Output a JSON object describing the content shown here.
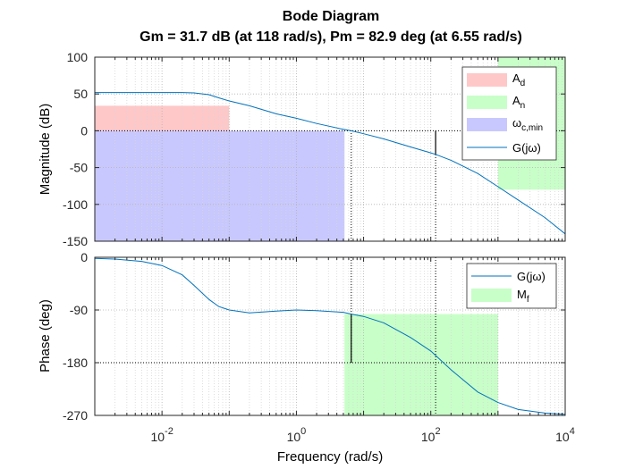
{
  "chart_data": {
    "type": "line",
    "title": "Bode Diagram",
    "subtitle": "Gm = 31.7 dB (at 118 rad/s),  Pm = 82.9 deg (at 6.55 rad/s)",
    "xlabel": "Frequency  (rad/s)",
    "xscale": "log",
    "xlim": [
      0.001,
      10000
    ],
    "grid": true,
    "x_ticks": [
      {
        "value": 0.01,
        "base": "10",
        "exp": "-2"
      },
      {
        "value": 1,
        "base": "10",
        "exp": "0"
      },
      {
        "value": 100,
        "base": "10",
        "exp": "2"
      },
      {
        "value": 10000,
        "base": "10",
        "exp": "4"
      }
    ],
    "magnitude": {
      "ylabel": "Magnitude (dB)",
      "ylim": [
        -150,
        100
      ],
      "yticks": [
        "100",
        "50",
        "0",
        "-50",
        "-100",
        "-150"
      ],
      "ytick_values": [
        100,
        50,
        0,
        -50,
        -100,
        -150
      ],
      "series": [
        {
          "name": "G(jω)",
          "color": "#0072BD",
          "x": [
            0.001,
            0.002,
            0.005,
            0.01,
            0.02,
            0.03,
            0.05,
            0.07,
            0.1,
            0.2,
            0.5,
            1,
            2,
            5,
            6.55,
            10,
            20,
            50,
            100,
            118,
            200,
            500,
            1000,
            2000,
            5000,
            10000
          ],
          "y": [
            52,
            52,
            52,
            52,
            52,
            51.5,
            49,
            44.8,
            40.5,
            34,
            23,
            17,
            10,
            2,
            0,
            -4,
            -11,
            -22,
            -30,
            -32,
            -40,
            -58,
            -76,
            -94,
            -118,
            -140
          ]
        }
      ],
      "regions": [
        {
          "name": "A_d",
          "label_main": "A",
          "label_sub": "d",
          "color": "#ffc8c8",
          "x": [
            0.001,
            0.1
          ],
          "y": [
            0,
            34
          ]
        },
        {
          "name": "A_n",
          "label_main": "A",
          "label_sub": "n",
          "color": "#c8ffc8",
          "x": [
            1000,
            10000
          ],
          "y": [
            -80,
            100
          ]
        },
        {
          "name": "ω_c,min",
          "label_main": "ω",
          "label_sub": "c,min",
          "color": "#c8c8ff",
          "x": [
            0.001,
            5.2
          ],
          "y": [
            -150,
            0
          ]
        }
      ],
      "annotations": [
        {
          "type": "dotted-hline",
          "y": 0
        },
        {
          "type": "dotted-vline",
          "x": 6.55,
          "y_from": -150,
          "y_to": 0
        },
        {
          "type": "dotted-vline",
          "x": 118,
          "y_from": -150,
          "y_to": -32
        },
        {
          "type": "gain-margin-bar",
          "x": 118,
          "y_from": -32,
          "y_to": 0
        }
      ],
      "legend": [
        "A_d",
        "A_n",
        "ω_c,min",
        "G(jω)"
      ],
      "legend_position": "top-right"
    },
    "phase": {
      "ylabel": "Phase (deg)",
      "ylim": [
        -270,
        0
      ],
      "yticks": [
        "0",
        "-90",
        "-180",
        "-270"
      ],
      "ytick_values": [
        0,
        -90,
        -180,
        -270
      ],
      "series": [
        {
          "name": "G(jω)",
          "color": "#0072BD",
          "x": [
            0.001,
            0.002,
            0.005,
            0.01,
            0.02,
            0.03,
            0.05,
            0.07,
            0.1,
            0.2,
            0.5,
            1,
            2,
            5,
            6.55,
            10,
            20,
            50,
            100,
            200,
            500,
            1000,
            2000,
            5000,
            10000
          ],
          "y": [
            -2,
            -3,
            -7,
            -14,
            -30,
            -48,
            -72,
            -84,
            -90,
            -95,
            -92,
            -90,
            -91,
            -94,
            -97,
            -101,
            -112,
            -137,
            -160,
            -192,
            -230,
            -248,
            -260,
            -266,
            -268
          ]
        }
      ],
      "regions": [
        {
          "name": "M_f",
          "label_main": "M",
          "label_sub": "f",
          "color": "#c8ffc8",
          "x": [
            5.2,
            1000
          ],
          "y": [
            -270,
            -97
          ]
        }
      ],
      "annotations": [
        {
          "type": "dotted-hline",
          "y": -180
        },
        {
          "type": "dotted-vline",
          "x": 6.55,
          "y_from": 0,
          "y_to": -180
        },
        {
          "type": "dotted-vline",
          "x": 118,
          "y_from": 0,
          "y_to": -270
        },
        {
          "type": "phase-margin-bar",
          "x": 6.55,
          "y_from": -180,
          "y_to": -97
        }
      ],
      "legend": [
        "G(jω)",
        "M_f"
      ],
      "legend_position": "top-right"
    }
  }
}
